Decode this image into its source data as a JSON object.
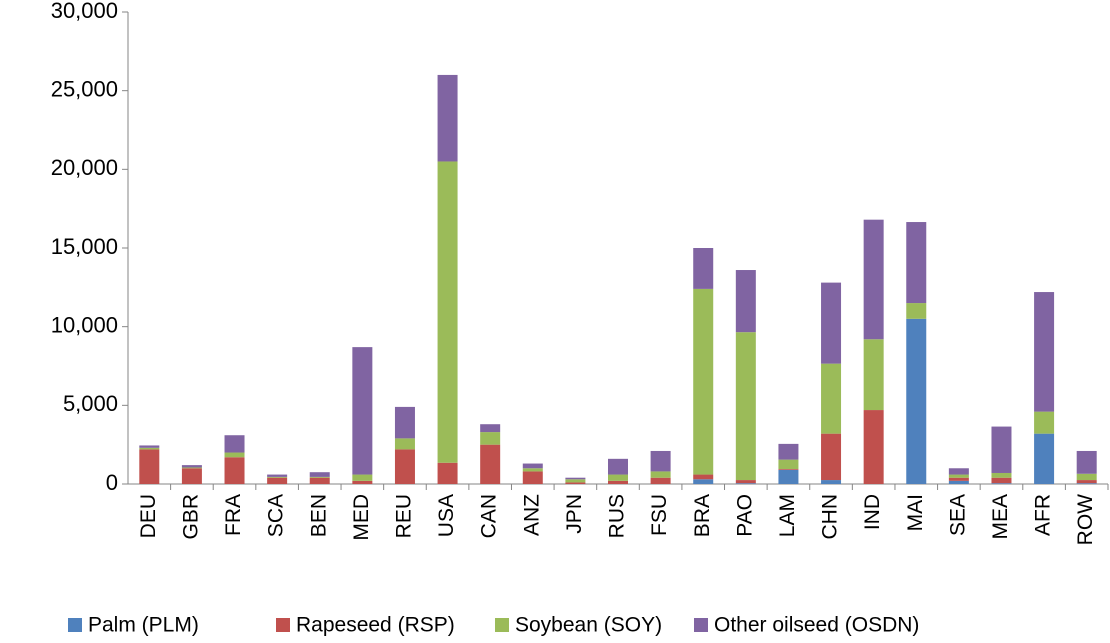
{
  "chart_data": {
    "type": "stacked_bar",
    "categories": [
      "DEU",
      "GBR",
      "FRA",
      "SCA",
      "BEN",
      "MED",
      "REU",
      "USA",
      "CAN",
      "ANZ",
      "JPN",
      "RUS",
      "FSU",
      "BRA",
      "PAO",
      "LAM",
      "CHN",
      "IND",
      "MAI",
      "SEA",
      "MEA",
      "AFR",
      "ROW"
    ],
    "series": [
      {
        "name": "Palm (PLM)",
        "color": "#4f81bd",
        "values": [
          0,
          0,
          0,
          0,
          0,
          0,
          0,
          0,
          0,
          0,
          0,
          0,
          0,
          300,
          50,
          900,
          250,
          0,
          10500,
          200,
          50,
          3200,
          50
        ]
      },
      {
        "name": "Rapeseed (RSP)",
        "color": "#c0504d",
        "values": [
          2200,
          1000,
          1700,
          400,
          400,
          200,
          2200,
          1350,
          2500,
          800,
          100,
          200,
          400,
          300,
          200,
          50,
          2950,
          4700,
          0,
          200,
          350,
          0,
          200
        ]
      },
      {
        "name": "Soybean (SOY)",
        "color": "#9bbb59",
        "values": [
          100,
          50,
          300,
          50,
          50,
          400,
          700,
          19150,
          800,
          200,
          200,
          400,
          400,
          11800,
          9400,
          600,
          4450,
          4500,
          1000,
          200,
          300,
          1400,
          400
        ]
      },
      {
        "name": "Other oilseed (OSDN)",
        "color": "#8064a2",
        "values": [
          150,
          150,
          1100,
          150,
          300,
          8100,
          2000,
          5500,
          500,
          300,
          100,
          1000,
          1300,
          2600,
          3950,
          1000,
          5150,
          7600,
          5150,
          400,
          2950,
          7600,
          1450
        ]
      }
    ],
    "ylim": [
      0,
      30000
    ],
    "yticks": [
      0,
      {
        "value": 5000,
        "label": "5,000"
      },
      {
        "value": 10000,
        "label": "10,000"
      },
      {
        "value": 15000,
        "label": "15,000"
      },
      {
        "value": 20000,
        "label": "20,000"
      },
      {
        "value": 25000,
        "label": "25,000"
      },
      {
        "value": 30000,
        "label": "30,000"
      }
    ],
    "legend": "bottom"
  }
}
